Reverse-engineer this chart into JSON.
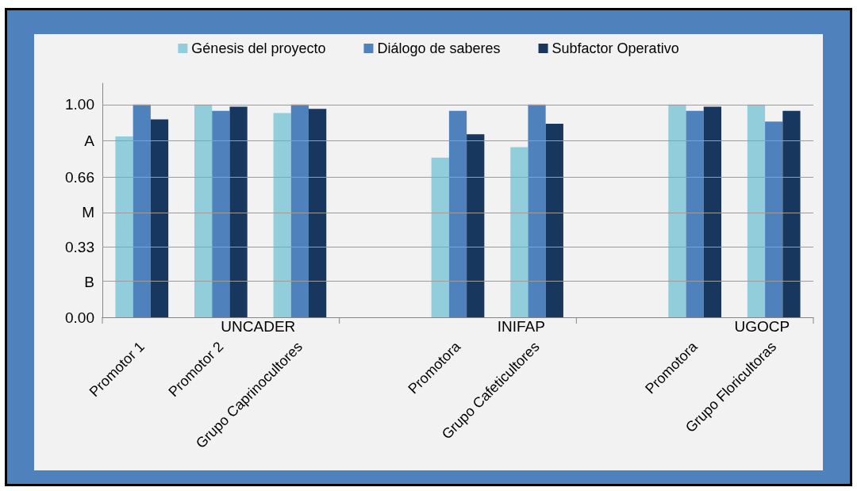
{
  "chart_data": {
    "type": "bar",
    "categories": [
      "Promotor 1",
      "Promotor 2",
      "Grupo Caprinocultores",
      null,
      "Promotora",
      "Grupo Cafeticultores",
      null,
      "Promotora",
      "Grupo Floricultoras"
    ],
    "series": [
      {
        "name": "Génesis del proyecto",
        "color": "#92cddc",
        "values": [
          0.85,
          1.0,
          0.96,
          null,
          0.75,
          0.8,
          null,
          1.0,
          1.0
        ]
      },
      {
        "name": "Diálogo de saberes",
        "color": "#4f81bd",
        "values": [
          1.0,
          0.97,
          1.0,
          null,
          0.97,
          1.0,
          null,
          0.97,
          0.92
        ]
      },
      {
        "name": "Subfactor Operativo",
        "color": "#17375e",
        "values": [
          0.93,
          0.99,
          0.98,
          null,
          0.86,
          0.91,
          null,
          0.99,
          0.97
        ]
      }
    ],
    "ylim": [
      0,
      1.1
    ],
    "yticks": [
      {
        "value": 0,
        "label": "0.00"
      },
      {
        "value": 0.165,
        "label": "B"
      },
      0.33,
      {
        "value": 0.495,
        "label": "M"
      },
      0.66,
      {
        "value": 0.83,
        "label": "A"
      },
      {
        "value": 1,
        "label": "1.00"
      }
    ],
    "grid": "y",
    "legend": "top",
    "annotations": [
      "UNCADER",
      "INIFAP",
      "UGOCP"
    ]
  }
}
